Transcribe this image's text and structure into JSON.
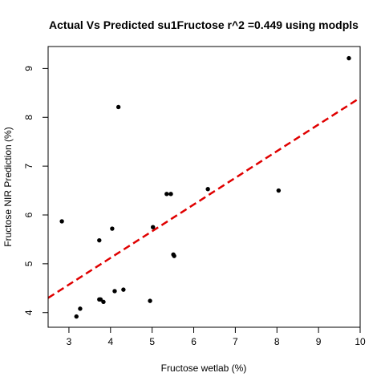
{
  "chart_data": {
    "type": "scatter",
    "title": "Actual Vs Predicted su1Fructose r^2 =0.449 using modpls",
    "xlabel": "Fructose wetlab (%)",
    "ylabel": "Fructose NIR Prediction (%)",
    "xlim": [
      2.5,
      10
    ],
    "ylim": [
      3.7,
      9.45
    ],
    "x_ticks": [
      "3",
      "4",
      "5",
      "6",
      "7",
      "8",
      "9",
      "10"
    ],
    "y_ticks": [
      "4",
      "5",
      "6",
      "7",
      "8",
      "9"
    ],
    "grid": false,
    "point_color": "#000000",
    "series": [
      {
        "x": [
          2.83,
          3.18,
          3.27,
          3.73,
          3.73,
          3.76,
          3.83,
          4.04,
          4.1,
          4.19,
          4.31,
          4.95,
          5.02,
          5.35,
          5.45,
          5.51,
          5.53,
          6.34,
          8.04,
          9.73
        ],
        "y": [
          5.87,
          3.92,
          4.08,
          5.48,
          4.27,
          4.27,
          4.22,
          5.72,
          4.44,
          8.21,
          4.47,
          4.24,
          5.75,
          6.43,
          6.43,
          5.19,
          5.16,
          6.53,
          6.5,
          9.21
        ]
      }
    ],
    "fit_line": {
      "style": "dashed",
      "color": "#e00000",
      "x": [
        2.5,
        10
      ],
      "y": [
        4.3,
        8.4
      ]
    }
  }
}
